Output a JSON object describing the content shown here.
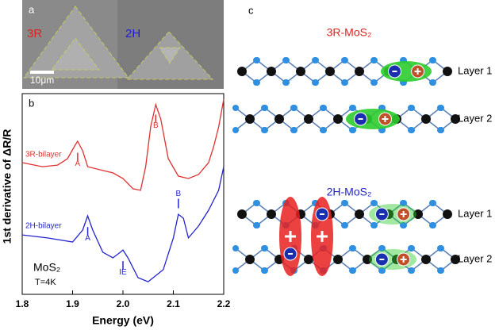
{
  "panel_a": {
    "label": "a",
    "left_label": "3R",
    "right_label": "2H",
    "scale_bar": "10μm"
  },
  "chart_data": {
    "type": "line",
    "panel_label": "b",
    "xlabel": "Energy (eV)",
    "ylabel": "1st derivative of ΔR/R",
    "xlim": [
      1.8,
      2.2
    ],
    "xticks": [
      1.8,
      1.9,
      {
        "value": 2.0,
        "label": "2.0"
      },
      2.1,
      2.2
    ],
    "ylim": [
      0,
      100
    ],
    "series": [
      {
        "name": "3R-bilayer",
        "color": "#e03030",
        "x": [
          1.8,
          1.84,
          1.87,
          1.89,
          1.905,
          1.91,
          1.92,
          1.93,
          1.96,
          1.98,
          2.0,
          2.02,
          2.035,
          2.045,
          2.055,
          2.065,
          2.075,
          2.09,
          2.11,
          2.13,
          2.15,
          2.17,
          2.18,
          2.19,
          2.2
        ],
        "values": [
          65.6,
          63.6,
          64.4,
          67.6,
          74.3,
          76.3,
          71.5,
          63.6,
          61.7,
          60.5,
          57.7,
          52.6,
          51.8,
          63.6,
          83.4,
          94.5,
          87.4,
          67.6,
          58.9,
          57.7,
          59.7,
          65.6,
          73.5,
          83.4,
          97.2
        ]
      },
      {
        "name": "2H-bilayer",
        "color": "#2424d0",
        "x": [
          1.8,
          1.85,
          1.9,
          1.92,
          1.93,
          1.94,
          1.96,
          1.98,
          1.995,
          2.0,
          2.01,
          2.03,
          2.05,
          2.08,
          2.1,
          2.11,
          2.12,
          2.13,
          2.15,
          2.17,
          2.19,
          2.2
        ],
        "values": [
          29.6,
          28.1,
          26.1,
          32.0,
          39.1,
          32.0,
          21.0,
          18.2,
          21.0,
          22.1,
          18.2,
          8.3,
          6.3,
          12.3,
          28.1,
          39.9,
          37.9,
          28.1,
          34.0,
          41.9,
          51.8,
          63.6
        ]
      }
    ],
    "annotations": [
      {
        "text": "A",
        "x": 1.91,
        "y": 65,
        "series": 0
      },
      {
        "text": "B",
        "x": 2.065,
        "y": 84,
        "series": 0
      },
      {
        "text": "A",
        "x": 1.93,
        "y": 28,
        "series": 1
      },
      {
        "text": "IE",
        "x": 2.0,
        "y": 11,
        "series": 1
      },
      {
        "text": "B",
        "x": 2.11,
        "y": 50,
        "series": 1
      }
    ],
    "material": "MoS₂",
    "temperature": "T=4K"
  },
  "panel_c": {
    "label": "c",
    "top_title": "3R-MoS₂",
    "bottom_title": "2H-MoS₂",
    "layers": [
      "Layer 1",
      "Layer 2",
      "Layer 1",
      "Layer 2"
    ]
  }
}
